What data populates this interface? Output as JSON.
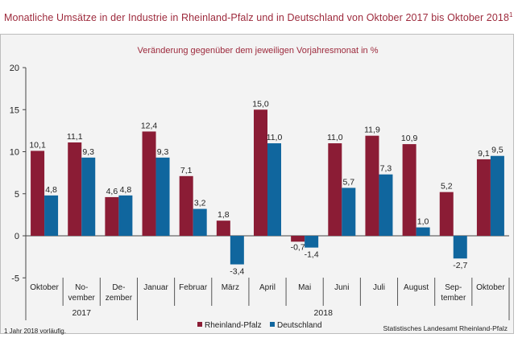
{
  "page": {
    "title": "Monatliche Umsätze in der Industrie in Rheinland-Pfalz und in Deutschland von Oktober 2017 bis Oktober 2018",
    "title_footnote_marker": "1",
    "footnote": "1 Jahr 2018 vorläufig.",
    "source": "Statistisches Landesamt Rheinland-Pfalz"
  },
  "chart_data": {
    "type": "bar",
    "title": "Monatliche Umsätze in der Industrie in Rheinland-Pfalz und in Deutschland von Oktober 2017 bis Oktober 2018",
    "subtitle": "Veränderung gegenüber dem jeweiligen Vorjahresmonat in %",
    "categories": [
      "Oktober",
      "No-\nvember",
      "De-\nzember",
      "Januar",
      "Februar",
      "März",
      "April",
      "Mai",
      "Juni",
      "Juli",
      "August",
      "Sep-\ntember",
      "Oktober"
    ],
    "year_groups": [
      {
        "label": "2017",
        "start": 0,
        "end": 2
      },
      {
        "label": "2018",
        "start": 3,
        "end": 12
      }
    ],
    "series": [
      {
        "name": "Rheinland-Pfalz",
        "color": "#8b1c35",
        "values": [
          10.1,
          11.1,
          4.6,
          12.4,
          7.1,
          1.8,
          15.0,
          -0.7,
          11.0,
          11.9,
          10.9,
          5.2,
          9.1
        ]
      },
      {
        "name": "Deutschland",
        "color": "#10669e",
        "values": [
          4.8,
          9.3,
          4.8,
          9.3,
          3.2,
          -3.4,
          11.0,
          -1.4,
          5.7,
          7.3,
          1.0,
          -2.7,
          9.5
        ]
      }
    ],
    "value_labels": [
      [
        "10,1",
        "11,1",
        "4,6",
        "12,4",
        "7,1",
        "1,8",
        "15,0",
        "-0,7",
        "11,0",
        "11,9",
        "10,9",
        "5,2",
        "9,1"
      ],
      [
        "4,8",
        "9,3",
        "4,8",
        "9,3",
        "3,2",
        "-3,4",
        "11,0",
        "-1,4",
        "5,7",
        "7,3",
        "1,0",
        "-2,7",
        "9,5"
      ]
    ],
    "ylim": [
      -5,
      20
    ],
    "yticks": [
      -5,
      0,
      5,
      10,
      15,
      20
    ],
    "grid": false,
    "legend_position": "bottom-center",
    "xlabel": "",
    "ylabel": ""
  }
}
